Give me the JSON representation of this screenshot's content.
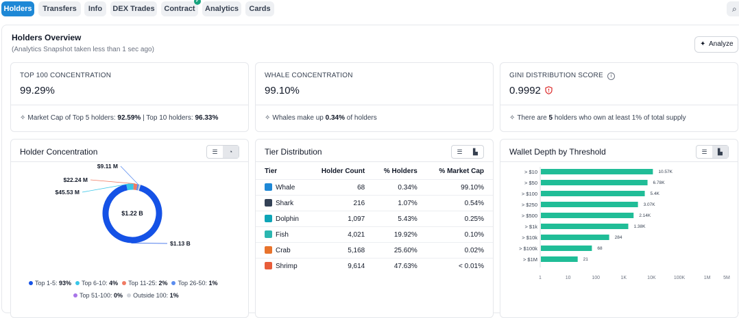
{
  "tabs": [
    {
      "label": "Holders",
      "active": true
    },
    {
      "label": "Transfers"
    },
    {
      "label": "Info"
    },
    {
      "label": "DEX Trades"
    },
    {
      "label": "Contract",
      "verified": true
    },
    {
      "label": "Analytics"
    },
    {
      "label": "Cards"
    }
  ],
  "search_icon": "search-icon",
  "overview": {
    "title": "Holders Overview",
    "subtitle": "(Analytics Snapshot taken less than 1 sec ago)",
    "analyze_label": "Analyze"
  },
  "stats": {
    "top100": {
      "label": "TOP 100 CONCENTRATION",
      "value": "99.29%",
      "note_prefix": "Market Cap of Top 5 holders:",
      "top5": "92.59%",
      "note_mid": "| Top 10 holders:",
      "top10": "96.33%"
    },
    "whale": {
      "label": "WHALE CONCENTRATION",
      "value": "99.10%",
      "note_prefix": "Whales make up",
      "pct": "0.34%",
      "note_suffix": "of holders"
    },
    "gini": {
      "label": "GINI DISTRIBUTION SCORE",
      "value": "0.9992",
      "note_prefix": "There are",
      "count": "5",
      "note_suffix": "holders who own at least 1% of total supply"
    }
  },
  "holder_concentration": {
    "title": "Holder Concentration",
    "center_label": "$1.22 B",
    "chart_data": {
      "type": "pie",
      "labels": [
        "Top 1-5",
        "Top 6-10",
        "Top 11-25",
        "Top 26-50",
        "Top 51-100",
        "Outside 100"
      ],
      "values": [
        93,
        4,
        2,
        1,
        0,
        1
      ],
      "display_values": [
        "93%",
        "4%",
        "2%",
        "1%",
        "0%",
        "1%"
      ],
      "colors": [
        "#1552e6",
        "#38c6e8",
        "#f07b63",
        "#5b8def",
        "#a875e8",
        "#d1d5db"
      ],
      "annotations": [
        "$1.13 B",
        "$45.53 M",
        "$22.24 M",
        "$9.11 M"
      ]
    }
  },
  "tier_distribution": {
    "title": "Tier Distribution",
    "columns": [
      "Tier",
      "Holder Count",
      "% Holders",
      "% Market Cap"
    ],
    "rows": [
      {
        "tier": "Whale",
        "count": "68",
        "holders": "0.34%",
        "mcap": "99.10%",
        "color": "#1e88d6"
      },
      {
        "tier": "Shark",
        "count": "216",
        "holders": "1.07%",
        "mcap": "0.54%",
        "color": "#334155"
      },
      {
        "tier": "Dolphin",
        "count": "1,097",
        "holders": "5.43%",
        "mcap": "0.25%",
        "color": "#0ea5b7"
      },
      {
        "tier": "Fish",
        "count": "4,021",
        "holders": "19.92%",
        "mcap": "0.10%",
        "color": "#2bb6b0"
      },
      {
        "tier": "Crab",
        "count": "5,168",
        "holders": "25.60%",
        "mcap": "0.02%",
        "color": "#e8732c"
      },
      {
        "tier": "Shrimp",
        "count": "9,614",
        "holders": "47.63%",
        "mcap": "< 0.01%",
        "color": "#e85d3a"
      }
    ]
  },
  "wallet_depth": {
    "title": "Wallet Depth by Threshold",
    "chart_data": {
      "type": "bar",
      "orientation": "horizontal",
      "x_scale": "log",
      "categories": [
        "> $10",
        "> $50",
        "> $100",
        "> $250",
        "> $500",
        "> $1k",
        "> $10k",
        "> $100k",
        "> $1M"
      ],
      "values": [
        10570,
        6780,
        5400,
        3070,
        2140,
        1380,
        284,
        68,
        21
      ],
      "value_labels": [
        "10.57K",
        "6.78K",
        "5.4K",
        "3.07K",
        "2.14K",
        "1.38K",
        "284",
        "68",
        "21"
      ],
      "x_ticks": [
        1,
        10,
        100,
        1000,
        10000,
        100000,
        1000000,
        5000000
      ],
      "x_tick_labels": [
        "1",
        "10",
        "100",
        "1K",
        "10K",
        "100K",
        "1M",
        "5M"
      ],
      "bar_color": "#20bd97"
    }
  }
}
